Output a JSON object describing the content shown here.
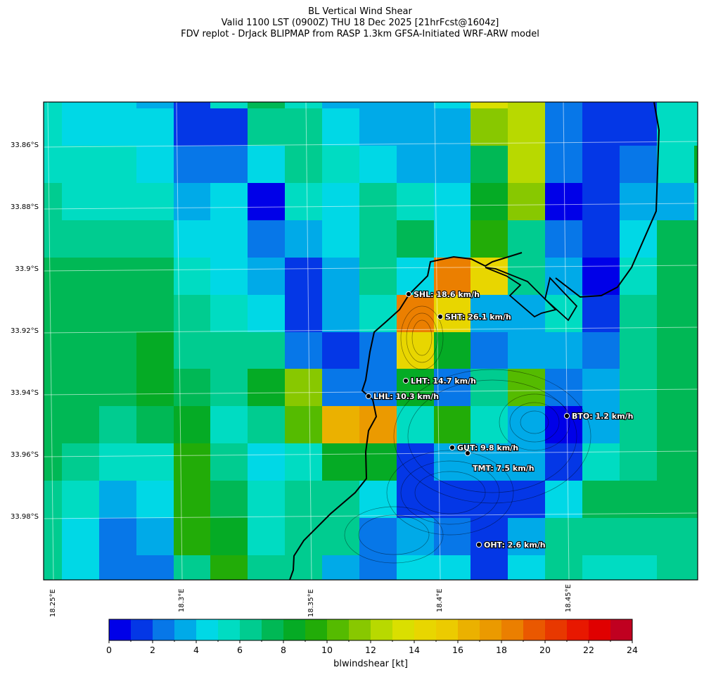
{
  "title": {
    "line1": "BL Vertical Wind Shear",
    "line2": "Valid 1100 LST (0900Z) THU 18 Dec 2025 [21hrFcst@1604z]",
    "line3": "FDV replot - DrJack BLIPMAP from RASP 1.3km GFSA-Initiated WRF-ARW model"
  },
  "chart_data": {
    "type": "heatmap",
    "variable": "blwindshear [kt]",
    "colorbar": {
      "label": "blwindshear [kt]",
      "range": [
        0,
        24
      ],
      "ticks": [
        "0",
        "2",
        "4",
        "6",
        "8",
        "10",
        "12",
        "14",
        "16",
        "18",
        "20",
        "22",
        "24"
      ],
      "colors": [
        "#0000e8",
        "#0437e6",
        "#0777e8",
        "#00aae8",
        "#00d8e6",
        "#00dcc2",
        "#00cc90",
        "#00b855",
        "#05ab25",
        "#22ac08",
        "#55bb00",
        "#88c800",
        "#b8d900",
        "#dadf00",
        "#e8d600",
        "#eccb00",
        "#ebb100",
        "#eb9a00",
        "#eb7f00",
        "#ea5800",
        "#e83800",
        "#e81800",
        "#e00000",
        "#c00020"
      ]
    },
    "y_ticks": [
      "33.86°S",
      "33.88°S",
      "33.9°S",
      "33.92°S",
      "33.94°S",
      "33.96°S",
      "33.98°S"
    ],
    "x_ticks": [
      "18.25°E",
      "18.3°E",
      "18.35°E",
      "18.4°E",
      "18.45°E"
    ],
    "grid_kt_bin_lower": [
      [
        5,
        4,
        4,
        3,
        1,
        5,
        7,
        5,
        3,
        3,
        3,
        4,
        13,
        12,
        2,
        1,
        1,
        5,
        5
      ],
      [
        5,
        4,
        4,
        4,
        1,
        1,
        6,
        6,
        4,
        3,
        3,
        3,
        11,
        12,
        2,
        1,
        1,
        5,
        5
      ],
      [
        5,
        5,
        5,
        4,
        2,
        2,
        4,
        6,
        5,
        4,
        3,
        3,
        7,
        12,
        2,
        1,
        2,
        5,
        8
      ],
      [
        6,
        5,
        5,
        5,
        3,
        4,
        0,
        5,
        4,
        6,
        5,
        4,
        8,
        11,
        0,
        1,
        3,
        3,
        5
      ],
      [
        6,
        6,
        6,
        6,
        4,
        4,
        2,
        3,
        4,
        6,
        7,
        4,
        9,
        6,
        2,
        1,
        4,
        7,
        7
      ],
      [
        7,
        7,
        7,
        7,
        5,
        4,
        3,
        1,
        3,
        6,
        4,
        18,
        14,
        6,
        3,
        0,
        5,
        7,
        7
      ],
      [
        7,
        7,
        7,
        7,
        6,
        5,
        4,
        1,
        3,
        5,
        18,
        14,
        3,
        3,
        5,
        1,
        6,
        7,
        7
      ],
      [
        7,
        7,
        7,
        8,
        6,
        6,
        6,
        2,
        1,
        2,
        14,
        8,
        2,
        3,
        3,
        2,
        6,
        7,
        7
      ],
      [
        7,
        7,
        7,
        8,
        7,
        6,
        8,
        11,
        2,
        2,
        8,
        2,
        6,
        10,
        2,
        3,
        6,
        7,
        7
      ],
      [
        7,
        7,
        6,
        7,
        8,
        5,
        6,
        10,
        16,
        17,
        5,
        9,
        5,
        3,
        0,
        3,
        6,
        7,
        7
      ],
      [
        7,
        6,
        5,
        5,
        9,
        6,
        4,
        5,
        8,
        8,
        1,
        3,
        3,
        3,
        1,
        5,
        6,
        7,
        7
      ],
      [
        6,
        5,
        3,
        4,
        9,
        7,
        5,
        6,
        6,
        4,
        1,
        1,
        1,
        1,
        4,
        7,
        7,
        7,
        7
      ],
      [
        6,
        4,
        2,
        3,
        9,
        8,
        5,
        6,
        6,
        2,
        3,
        2,
        1,
        3,
        6,
        6,
        6,
        6,
        6
      ],
      [
        6,
        4,
        2,
        2,
        6,
        9,
        6,
        6,
        3,
        2,
        4,
        4,
        1,
        4,
        6,
        5,
        5,
        6,
        6
      ]
    ],
    "stations": [
      {
        "code": "SHL",
        "label": "SHL: 18.6 km/h"
      },
      {
        "code": "SHT",
        "label": "SHT: 26.1 km/h"
      },
      {
        "code": "LHT",
        "label": "LHT: 14.7 km/h"
      },
      {
        "code": "LHL",
        "label": "LHL: 10.3 km/h"
      },
      {
        "code": "BTO",
        "label": "BTO: 1.2 km/h"
      },
      {
        "code": "GUT",
        "label": "GUT: 9.8 km/h"
      },
      {
        "code": "TMT",
        "label": "TMT: 7.5 km/h"
      },
      {
        "code": "OHT",
        "label": "OHT: 2.6 km/h"
      }
    ]
  }
}
